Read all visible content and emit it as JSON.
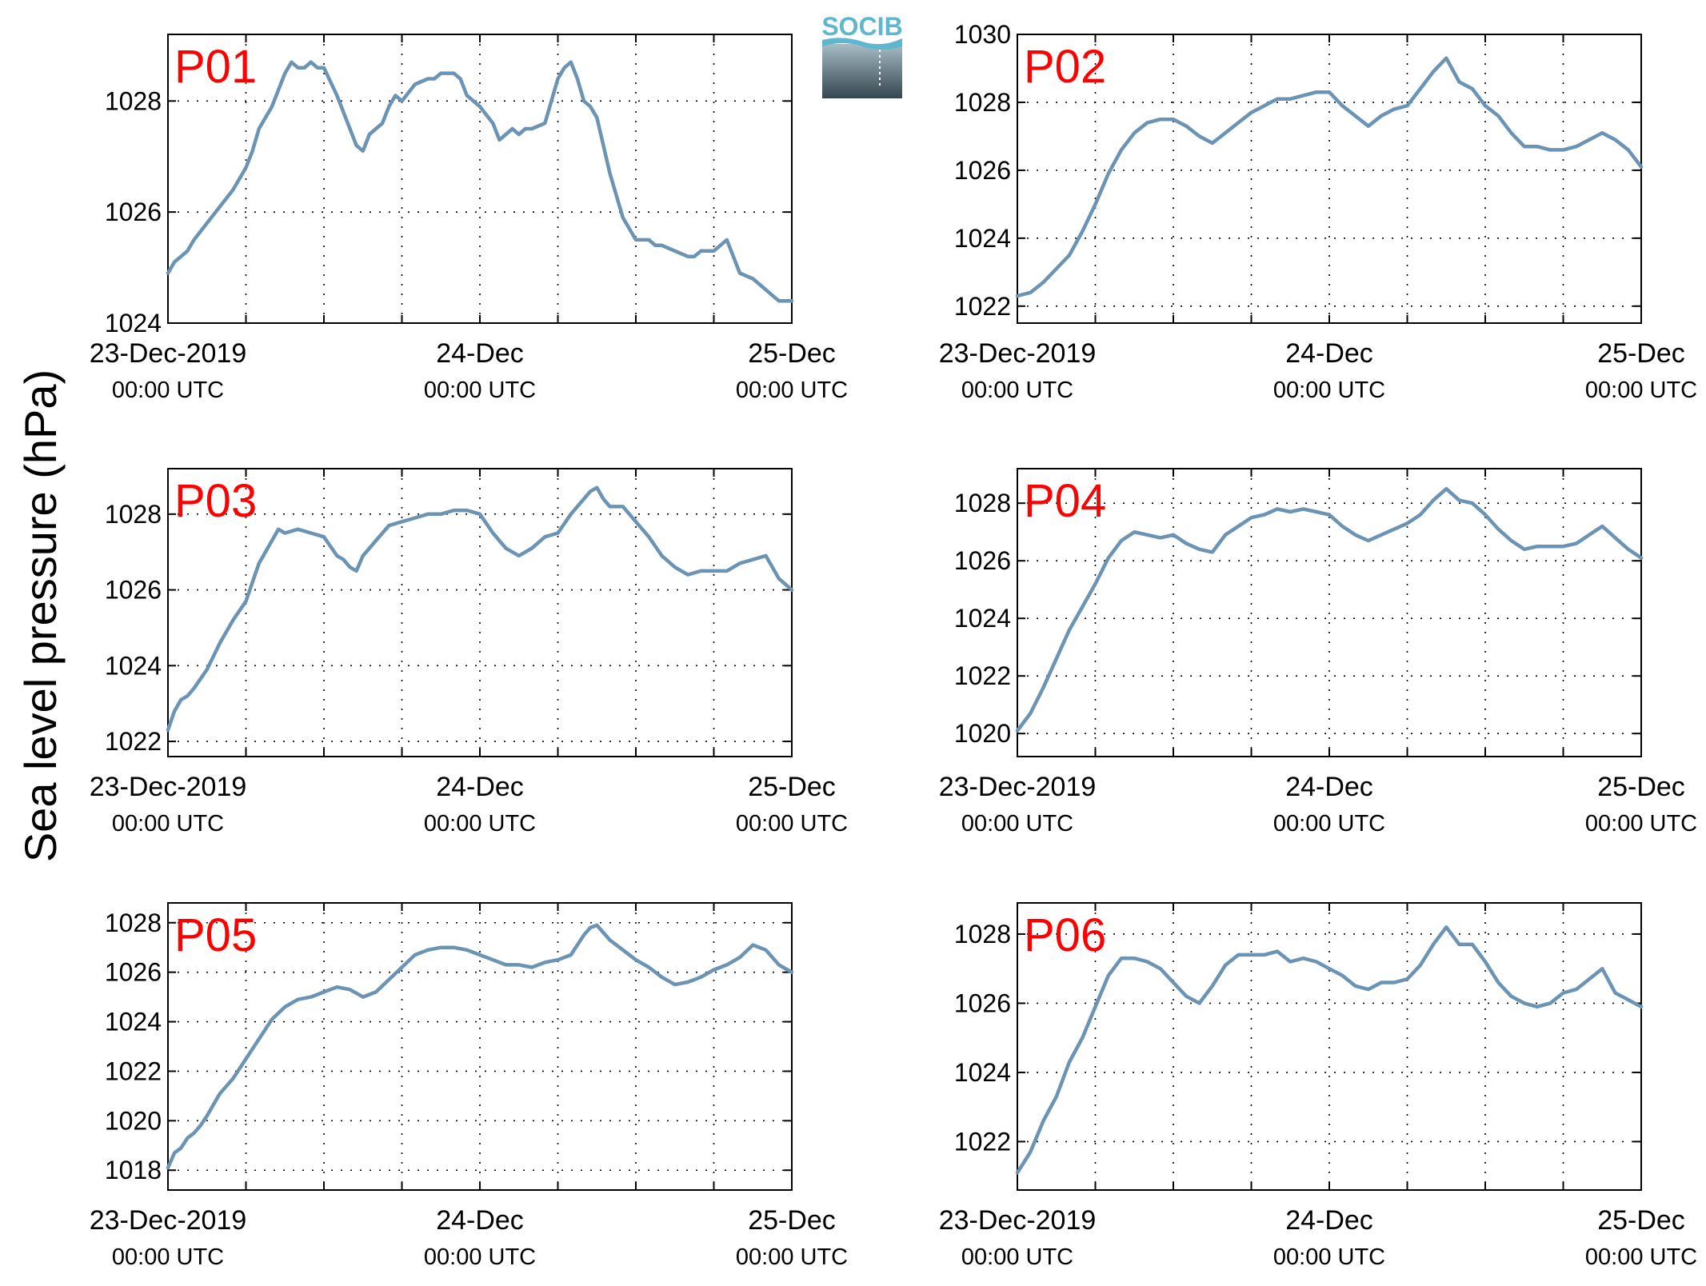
{
  "figure": {
    "ylabel": "Sea level pressure (hPa)",
    "logo_text": "SOCIB"
  },
  "colors": {
    "line": "#6b93b3",
    "panel_label": "#ff0000",
    "logo_text": "#5fb6cf",
    "logo_top": "#a7bcc5",
    "logo_bottom": "#34464f"
  },
  "x_axis": {
    "domain_hours": [
      0,
      48
    ],
    "major_tick_hours": [
      0,
      24,
      48
    ],
    "minor_tick_hours": [
      6,
      12,
      18,
      30,
      36,
      42
    ],
    "date_labels": [
      "23-Dec-2019",
      "24-Dec",
      "25-Dec"
    ],
    "time_labels": [
      "00:00 UTC",
      "00:00 UTC",
      "00:00 UTC"
    ]
  },
  "chart_data": [
    {
      "type": "line",
      "panel": "P01",
      "ylim": [
        1024,
        1029.2
      ],
      "yticks": [
        1024,
        1026,
        1028
      ],
      "x_hours": [
        0,
        0.5,
        1,
        1.5,
        2,
        3,
        4,
        5,
        6,
        6.5,
        7,
        8,
        8.5,
        9,
        9.5,
        10,
        10.5,
        11,
        11.5,
        12,
        13,
        13.5,
        14,
        14.5,
        15,
        15.5,
        16,
        16.5,
        17,
        17.5,
        18,
        19,
        20,
        20.5,
        21,
        22,
        22.5,
        23,
        24,
        25,
        25.5,
        26,
        26.5,
        27,
        27.5,
        28,
        29,
        30,
        30.5,
        31,
        31.5,
        32,
        32.5,
        33,
        33.5,
        34,
        34.5,
        35,
        35.5,
        36,
        36.5,
        37,
        37.5,
        38,
        39,
        40,
        40.5,
        41,
        41.5,
        42,
        43,
        44,
        45,
        45.5,
        46,
        46.5,
        47,
        48
      ],
      "y": [
        1024.9,
        1025.1,
        1025.2,
        1025.3,
        1025.5,
        1025.8,
        1026.1,
        1026.4,
        1026.8,
        1027.1,
        1027.5,
        1027.9,
        1028.2,
        1028.5,
        1028.7,
        1028.6,
        1028.6,
        1028.7,
        1028.6,
        1028.6,
        1028.1,
        1027.8,
        1027.5,
        1027.2,
        1027.1,
        1027.4,
        1027.5,
        1027.6,
        1027.9,
        1028.1,
        1028.0,
        1028.3,
        1028.4,
        1028.4,
        1028.5,
        1028.5,
        1028.4,
        1028.1,
        1027.9,
        1027.6,
        1027.3,
        1027.4,
        1027.5,
        1027.4,
        1027.5,
        1027.5,
        1027.6,
        1028.4,
        1028.6,
        1028.7,
        1028.4,
        1028.0,
        1027.9,
        1027.7,
        1027.2,
        1026.7,
        1026.3,
        1025.9,
        1025.7,
        1025.5,
        1025.5,
        1025.5,
        1025.4,
        1025.4,
        1025.3,
        1025.2,
        1025.2,
        1025.3,
        1025.3,
        1025.3,
        1025.5,
        1024.9,
        1024.8,
        1024.7,
        1024.6,
        1024.5,
        1024.4,
        1024.4
      ]
    },
    {
      "type": "line",
      "panel": "P02",
      "ylim": [
        1021.5,
        1030
      ],
      "yticks": [
        1022,
        1024,
        1026,
        1028,
        1030
      ],
      "x_hours": [
        0,
        1,
        2,
        3,
        4,
        5,
        6,
        7,
        8,
        9,
        10,
        11,
        12,
        13,
        14,
        15,
        16,
        17,
        18,
        19,
        20,
        21,
        22,
        23,
        24,
        25,
        26,
        27,
        28,
        29,
        30,
        31,
        32,
        33,
        34,
        35,
        36,
        37,
        38,
        39,
        40,
        41,
        42,
        43,
        44,
        45,
        46,
        47,
        48
      ],
      "y": [
        1022.3,
        1022.4,
        1022.7,
        1023.1,
        1023.5,
        1024.2,
        1025.0,
        1025.9,
        1026.6,
        1027.1,
        1027.4,
        1027.5,
        1027.5,
        1027.3,
        1027.0,
        1026.8,
        1027.1,
        1027.4,
        1027.7,
        1027.9,
        1028.1,
        1028.1,
        1028.2,
        1028.3,
        1028.3,
        1027.9,
        1027.6,
        1027.3,
        1027.6,
        1027.8,
        1027.9,
        1028.4,
        1028.9,
        1029.3,
        1028.6,
        1028.4,
        1027.9,
        1027.6,
        1027.1,
        1026.7,
        1026.7,
        1026.6,
        1026.6,
        1026.7,
        1026.9,
        1027.1,
        1026.9,
        1026.6,
        1026.1
      ]
    },
    {
      "type": "line",
      "panel": "P03",
      "ylim": [
        1021.6,
        1029.2
      ],
      "yticks": [
        1022,
        1024,
        1026,
        1028
      ],
      "x_hours": [
        0,
        0.5,
        1,
        1.5,
        2,
        3,
        4,
        5,
        6,
        6.5,
        7,
        7.5,
        8,
        8.5,
        9,
        10,
        11,
        12,
        13,
        13.5,
        14,
        14.5,
        15,
        15.5,
        16,
        17,
        18,
        19,
        20,
        21,
        22,
        23,
        24,
        25,
        26,
        27,
        28,
        29,
        30,
        31,
        32,
        32.5,
        33,
        33.5,
        34,
        35,
        36,
        37,
        38,
        39,
        40,
        41,
        42,
        43,
        44,
        45,
        46,
        47,
        48
      ],
      "y": [
        1022.3,
        1022.8,
        1023.1,
        1023.2,
        1023.4,
        1023.9,
        1024.6,
        1025.2,
        1025.7,
        1026.2,
        1026.7,
        1027.0,
        1027.3,
        1027.6,
        1027.5,
        1027.6,
        1027.5,
        1027.4,
        1026.9,
        1026.8,
        1026.6,
        1026.5,
        1026.9,
        1027.1,
        1027.3,
        1027.7,
        1027.8,
        1027.9,
        1028.0,
        1028.0,
        1028.1,
        1028.1,
        1028.0,
        1027.5,
        1027.1,
        1026.9,
        1027.1,
        1027.4,
        1027.5,
        1028.0,
        1028.4,
        1028.6,
        1028.7,
        1028.4,
        1028.2,
        1028.2,
        1027.8,
        1027.4,
        1026.9,
        1026.6,
        1026.4,
        1026.5,
        1026.5,
        1026.5,
        1026.7,
        1026.8,
        1026.9,
        1026.3,
        1026.0
      ]
    },
    {
      "type": "line",
      "panel": "P04",
      "ylim": [
        1019.2,
        1029.2
      ],
      "yticks": [
        1020,
        1022,
        1024,
        1026,
        1028
      ],
      "x_hours": [
        0,
        1,
        2,
        3,
        4,
        5,
        6,
        7,
        8,
        9,
        10,
        11,
        12,
        13,
        14,
        15,
        16,
        17,
        18,
        19,
        20,
        21,
        22,
        23,
        24,
        25,
        26,
        27,
        28,
        29,
        30,
        31,
        32,
        33,
        34,
        35,
        36,
        37,
        38,
        39,
        40,
        41,
        42,
        43,
        44,
        45,
        46,
        47,
        48
      ],
      "y": [
        1020.1,
        1020.7,
        1021.6,
        1022.6,
        1023.6,
        1024.4,
        1025.2,
        1026.1,
        1026.7,
        1027.0,
        1026.9,
        1026.8,
        1026.9,
        1026.6,
        1026.4,
        1026.3,
        1026.9,
        1027.2,
        1027.5,
        1027.6,
        1027.8,
        1027.7,
        1027.8,
        1027.7,
        1027.6,
        1027.2,
        1026.9,
        1026.7,
        1026.9,
        1027.1,
        1027.3,
        1027.6,
        1028.1,
        1028.5,
        1028.1,
        1028.0,
        1027.6,
        1027.1,
        1026.7,
        1026.4,
        1026.5,
        1026.5,
        1026.5,
        1026.6,
        1026.9,
        1027.2,
        1026.8,
        1026.4,
        1026.1
      ]
    },
    {
      "type": "line",
      "panel": "P05",
      "ylim": [
        1017.2,
        1028.8
      ],
      "yticks": [
        1018,
        1020,
        1022,
        1024,
        1026,
        1028
      ],
      "x_hours": [
        0,
        0.5,
        1,
        1.5,
        2,
        2.5,
        3,
        4,
        5,
        6,
        7,
        8,
        9,
        10,
        11,
        12,
        13,
        14,
        15,
        16,
        17,
        18,
        19,
        20,
        21,
        22,
        23,
        24,
        25,
        26,
        27,
        28,
        29,
        30,
        31,
        32,
        32.5,
        33,
        34,
        35,
        36,
        37,
        38,
        39,
        40,
        41,
        42,
        43,
        44,
        45,
        46,
        47,
        48
      ],
      "y": [
        1018.1,
        1018.7,
        1018.9,
        1019.3,
        1019.5,
        1019.8,
        1020.2,
        1021.1,
        1021.7,
        1022.5,
        1023.3,
        1024.1,
        1024.6,
        1024.9,
        1025.0,
        1025.2,
        1025.4,
        1025.3,
        1025.0,
        1025.2,
        1025.7,
        1026.2,
        1026.7,
        1026.9,
        1027.0,
        1027.0,
        1026.9,
        1026.7,
        1026.5,
        1026.3,
        1026.3,
        1026.2,
        1026.4,
        1026.5,
        1026.7,
        1027.5,
        1027.8,
        1027.9,
        1027.3,
        1026.9,
        1026.5,
        1026.2,
        1025.8,
        1025.5,
        1025.6,
        1025.8,
        1026.1,
        1026.3,
        1026.6,
        1027.1,
        1026.9,
        1026.3,
        1026.0
      ]
    },
    {
      "type": "line",
      "panel": "P06",
      "ylim": [
        1020.6,
        1028.9
      ],
      "yticks": [
        1022,
        1024,
        1026,
        1028
      ],
      "x_hours": [
        0,
        1,
        2,
        3,
        4,
        5,
        6,
        7,
        8,
        9,
        10,
        11,
        12,
        13,
        14,
        15,
        16,
        17,
        18,
        19,
        20,
        21,
        22,
        23,
        24,
        25,
        26,
        27,
        28,
        29,
        30,
        31,
        32,
        33,
        34,
        35,
        36,
        37,
        38,
        39,
        40,
        41,
        42,
        43,
        44,
        45,
        46,
        47,
        48
      ],
      "y": [
        1021.1,
        1021.7,
        1022.6,
        1023.3,
        1024.3,
        1025.0,
        1025.9,
        1026.8,
        1027.3,
        1027.3,
        1027.2,
        1027.0,
        1026.6,
        1026.2,
        1026.0,
        1026.5,
        1027.1,
        1027.4,
        1027.4,
        1027.4,
        1027.5,
        1027.2,
        1027.3,
        1027.2,
        1027.0,
        1026.8,
        1026.5,
        1026.4,
        1026.6,
        1026.6,
        1026.7,
        1027.1,
        1027.7,
        1028.2,
        1027.7,
        1027.7,
        1027.2,
        1026.6,
        1026.2,
        1026.0,
        1025.9,
        1026.0,
        1026.3,
        1026.4,
        1026.7,
        1027.0,
        1026.3,
        1026.1,
        1025.9
      ]
    }
  ]
}
